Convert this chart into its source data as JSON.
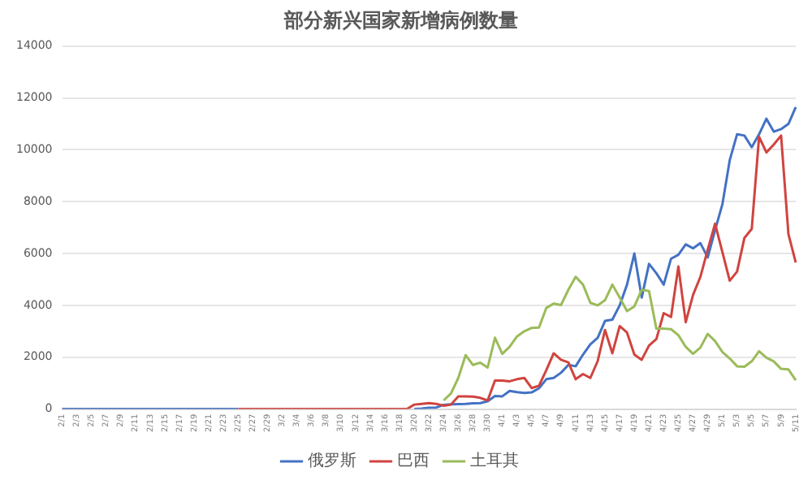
{
  "chart_data": {
    "type": "line",
    "title": "部分新兴国家新增病例数量",
    "categories": [
      "2/1",
      null,
      "2/3",
      null,
      "2/5",
      null,
      "2/7",
      null,
      "2/9",
      null,
      "2/11",
      null,
      "2/13",
      null,
      "2/15",
      null,
      "2/17",
      null,
      "2/19",
      null,
      "2/21",
      null,
      "2/23",
      null,
      "2/25",
      null,
      "2/27",
      null,
      "2/29",
      null,
      "3/2",
      null,
      "3/4",
      null,
      "3/6",
      null,
      "3/8",
      null,
      "3/10",
      null,
      "3/12",
      null,
      "3/14",
      null,
      "3/16",
      null,
      "3/18",
      null,
      "3/20",
      null,
      "3/22",
      null,
      "3/24",
      null,
      "3/26",
      null,
      "3/28",
      null,
      "3/30",
      null,
      "4/1",
      null,
      "4/3",
      null,
      "4/5",
      null,
      "4/7",
      null,
      "4/9",
      null,
      "4/11",
      null,
      "4/13",
      null,
      "4/15",
      null,
      "4/17",
      null,
      "4/19",
      null,
      "4/21",
      null,
      "4/23",
      null,
      "4/25",
      null,
      "4/27",
      null,
      "4/29",
      null,
      "5/1",
      null,
      "5/3",
      null,
      "5/5",
      null,
      "5/7",
      null,
      "5/9",
      null,
      "5/11"
    ],
    "series": [
      {
        "name": "俄罗斯",
        "color": "#4472c4",
        "values": [
          0,
          0,
          0,
          0,
          0,
          0,
          0,
          0,
          0,
          0,
          0,
          0,
          0,
          0,
          0,
          0,
          0,
          0,
          0,
          0,
          0,
          0,
          0,
          0,
          0,
          null,
          null,
          null,
          null,
          null,
          null,
          null,
          null,
          null,
          null,
          null,
          null,
          null,
          null,
          null,
          null,
          null,
          null,
          null,
          null,
          null,
          null,
          null,
          0,
          20,
          50,
          60,
          160,
          180,
          190,
          200,
          220,
          230,
          300,
          500,
          490,
          700,
          650,
          620,
          640,
          800,
          1150,
          1200,
          1400,
          1700,
          1650,
          2100,
          2500,
          2750,
          3400,
          3450,
          4000,
          4800,
          6000,
          4300,
          5600,
          5240,
          4800,
          5800,
          5950,
          6350,
          6200,
          6400,
          5850,
          6900,
          7900,
          9600,
          10600,
          10550,
          10100,
          10600,
          11200,
          10700,
          10800,
          11000,
          11650
        ]
      },
      {
        "name": "巴西",
        "color": "#d0443f",
        "values": [
          null,
          null,
          null,
          null,
          null,
          null,
          null,
          null,
          null,
          null,
          null,
          null,
          null,
          null,
          null,
          null,
          null,
          null,
          null,
          null,
          null,
          null,
          null,
          null,
          0,
          0,
          0,
          0,
          0,
          0,
          0,
          0,
          0,
          0,
          0,
          0,
          0,
          0,
          0,
          0,
          0,
          0,
          0,
          0,
          0,
          0,
          0,
          0,
          170,
          200,
          230,
          200,
          130,
          170,
          490,
          490,
          480,
          430,
          330,
          1100,
          1100,
          1070,
          1150,
          1200,
          810,
          900,
          1500,
          2150,
          1900,
          1800,
          1150,
          1350,
          1200,
          1850,
          3050,
          2150,
          3200,
          2950,
          2100,
          1900,
          2450,
          2700,
          3700,
          3550,
          5500,
          3350,
          4400,
          5100,
          6150,
          7150,
          6050,
          4950,
          5300,
          6600,
          6950,
          10500,
          9900,
          10200,
          10550,
          6750,
          5650
        ]
      },
      {
        "name": "土耳其",
        "color": "#9bbb59",
        "values": [
          null,
          null,
          null,
          null,
          null,
          null,
          null,
          null,
          null,
          null,
          null,
          null,
          null,
          null,
          null,
          null,
          null,
          null,
          null,
          null,
          null,
          null,
          null,
          null,
          null,
          null,
          null,
          null,
          null,
          null,
          null,
          null,
          null,
          null,
          null,
          null,
          null,
          null,
          null,
          null,
          null,
          null,
          null,
          null,
          null,
          null,
          null,
          null,
          null,
          null,
          null,
          null,
          330,
          600,
          1200,
          2080,
          1700,
          1790,
          1600,
          2750,
          2130,
          2400,
          2800,
          3000,
          3130,
          3140,
          3900,
          4070,
          4010,
          4600,
          5100,
          4800,
          4100,
          4000,
          4200,
          4800,
          4300,
          3780,
          3960,
          4600,
          4550,
          3100,
          3100,
          3080,
          2850,
          2400,
          2130,
          2370,
          2900,
          2620,
          2200,
          1950,
          1650,
          1630,
          1840,
          2230,
          1980,
          1840,
          1550,
          1530,
          1110
        ]
      }
    ],
    "ylim": [
      0,
      14000
    ],
    "yticks": [
      0,
      2000,
      4000,
      6000,
      8000,
      10000,
      12000,
      14000
    ],
    "grid": "y",
    "legend": "bottom",
    "marker": "none",
    "line_style": "solid"
  }
}
